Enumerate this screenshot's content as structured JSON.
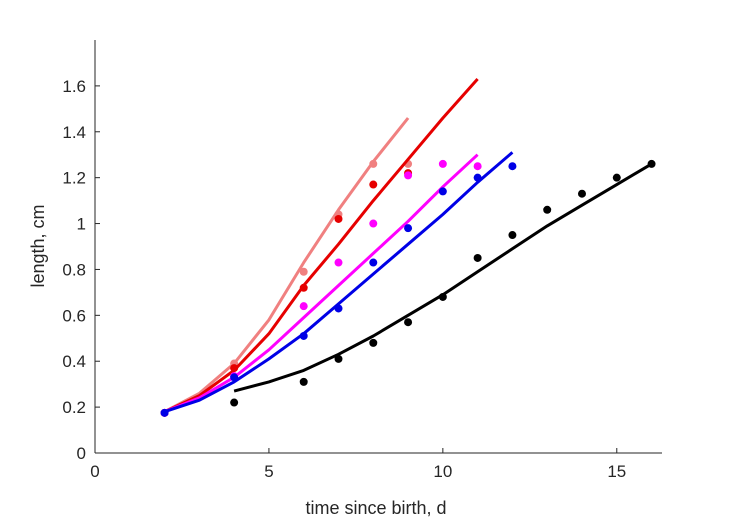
{
  "chart_data": {
    "type": "scatter",
    "title": "",
    "xlabel": "time since birth, d",
    "ylabel": "length, cm",
    "xlim": [
      0,
      16.3
    ],
    "ylim": [
      0,
      1.8
    ],
    "xticks": [
      0,
      5,
      10,
      15
    ],
    "yticks": [
      0,
      0.2,
      0.4,
      0.6,
      0.8,
      1,
      1.2,
      1.4,
      1.6
    ],
    "grid": false,
    "legend": "none",
    "series": [
      {
        "color": "#f08080",
        "points": {
          "x": [
            2,
            4,
            6,
            7,
            8,
            9
          ],
          "y": [
            0.175,
            0.39,
            0.79,
            1.04,
            1.26,
            1.26
          ]
        },
        "fit": {
          "x": [
            2,
            3,
            4,
            5,
            6,
            7,
            8,
            9
          ],
          "y": [
            0.18,
            0.26,
            0.39,
            0.58,
            0.83,
            1.06,
            1.27,
            1.46
          ]
        }
      },
      {
        "color": "#e60000",
        "points": {
          "x": [
            2,
            4,
            6,
            7,
            8,
            9
          ],
          "y": [
            0.175,
            0.37,
            0.72,
            1.02,
            1.17,
            1.22
          ]
        },
        "fit": {
          "x": [
            2,
            3,
            4,
            5,
            6,
            7,
            8,
            9,
            10,
            11
          ],
          "y": [
            0.18,
            0.25,
            0.36,
            0.52,
            0.73,
            0.91,
            1.1,
            1.28,
            1.46,
            1.63
          ]
        }
      },
      {
        "color": "#ff00ff",
        "points": {
          "x": [
            2,
            4,
            6,
            7,
            8,
            9,
            10,
            11
          ],
          "y": [
            0.175,
            0.335,
            0.64,
            0.83,
            1.0,
            1.21,
            1.26,
            1.25
          ]
        },
        "fit": {
          "x": [
            2,
            3,
            4,
            5,
            6,
            7,
            8,
            9,
            10,
            11
          ],
          "y": [
            0.18,
            0.24,
            0.33,
            0.45,
            0.59,
            0.73,
            0.87,
            1.01,
            1.16,
            1.3
          ]
        }
      },
      {
        "color": "#0000e6",
        "points": {
          "x": [
            2,
            4,
            6,
            7,
            8,
            9,
            10,
            11,
            12
          ],
          "y": [
            0.175,
            0.33,
            0.51,
            0.63,
            0.83,
            0.98,
            1.14,
            1.2,
            1.25
          ]
        },
        "fit": {
          "x": [
            2,
            3,
            4,
            5,
            6,
            7,
            8,
            9,
            10,
            11,
            12
          ],
          "y": [
            0.18,
            0.23,
            0.31,
            0.41,
            0.52,
            0.65,
            0.78,
            0.91,
            1.04,
            1.18,
            1.31
          ]
        }
      },
      {
        "color": "#000000",
        "points": {
          "x": [
            4,
            6,
            7,
            8,
            9,
            10,
            11,
            12,
            13,
            14,
            15,
            16
          ],
          "y": [
            0.22,
            0.31,
            0.41,
            0.48,
            0.57,
            0.68,
            0.85,
            0.95,
            1.06,
            1.13,
            1.2,
            1.26
          ]
        },
        "fit": {
          "x": [
            4,
            5,
            6,
            7,
            8,
            9,
            10,
            11,
            12,
            13,
            14,
            15,
            16
          ],
          "y": [
            0.27,
            0.31,
            0.36,
            0.43,
            0.51,
            0.6,
            0.69,
            0.79,
            0.89,
            0.99,
            1.08,
            1.17,
            1.26
          ]
        }
      }
    ]
  }
}
